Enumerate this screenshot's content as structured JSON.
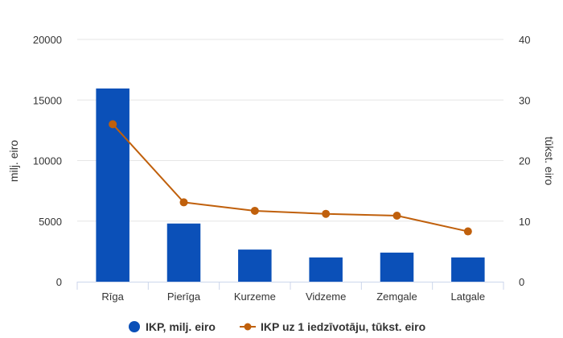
{
  "chart_data": {
    "type": "bar",
    "categories": [
      "Rīga",
      "Pierīga",
      "Kurzeme",
      "Vidzeme",
      "Zemgale",
      "Latgale"
    ],
    "series": [
      {
        "name": "IKP, milj. eiro",
        "type": "bar",
        "axis": "left",
        "color": "#0b50b8",
        "values": [
          15950,
          4800,
          2650,
          2000,
          2400,
          2000
        ]
      },
      {
        "name": "IKP uz 1 iedzīvotāju, tūkst. eiro",
        "type": "line",
        "axis": "right",
        "color": "#c0600c",
        "values": [
          26.0,
          13.1,
          11.7,
          11.2,
          10.9,
          8.3
        ]
      }
    ],
    "ylabel": "milj. eiro",
    "ylabel_right": "tūkst. eiro",
    "ylim": [
      0,
      20000
    ],
    "ylim_right": [
      0,
      40
    ],
    "yticks": [
      "0",
      "5000",
      "10000",
      "15000",
      "20000"
    ],
    "yticks_right": [
      "0",
      "10",
      "20",
      "30",
      "40"
    ],
    "grid": true,
    "legend_position": "bottom"
  }
}
